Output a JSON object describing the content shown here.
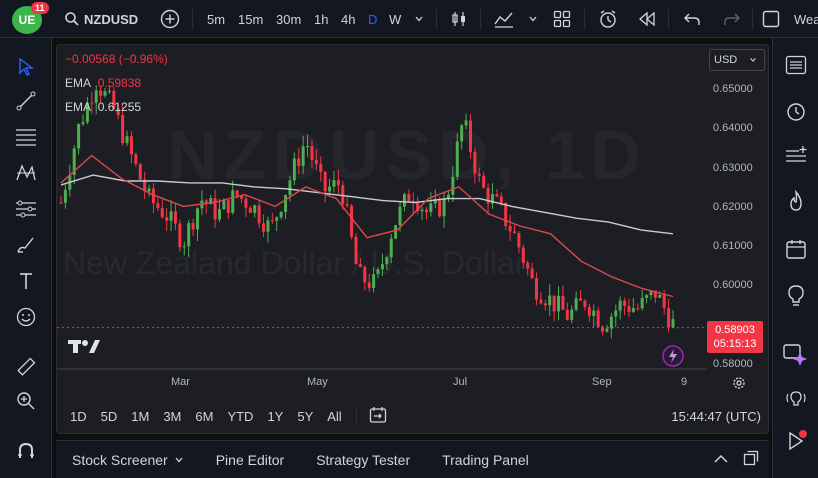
{
  "header": {
    "avatar_text": "UE",
    "notifications": "11",
    "symbol": "NZDUSD",
    "intervals": [
      "5m",
      "15m",
      "30m",
      "1h",
      "4h",
      "D",
      "W"
    ],
    "active_interval": "D",
    "right_text": "Wea"
  },
  "legend": {
    "change": "−0.00568 (−0.96%)",
    "ema1_label": "EMA",
    "ema1_value": "0.59838",
    "ema2_label": "EMA",
    "ema2_value": "0.61255"
  },
  "watermark": {
    "symbol": "NZDUSD, 1D",
    "description": "New Zealand Dollar / U.S. Dollar"
  },
  "price_scale": {
    "currency": "USD",
    "ticks": [
      "0.65000",
      "0.64000",
      "0.63000",
      "0.62000",
      "0.61000",
      "0.60000",
      "0.58000"
    ],
    "current_price": "0.58903",
    "countdown": "05:15:13"
  },
  "time_scale": {
    "ticks": [
      "Mar",
      "May",
      "Jul",
      "Sep",
      "9"
    ]
  },
  "range_bar": {
    "ranges": [
      "1D",
      "5D",
      "1M",
      "3M",
      "6M",
      "YTD",
      "1Y",
      "5Y",
      "All"
    ],
    "clock": "15:44:47 (UTC)"
  },
  "panels": {
    "tabs": [
      "Stock Screener",
      "Pine Editor",
      "Strategy Tester",
      "Trading Panel"
    ]
  },
  "colors": {
    "up": "#26a69a",
    "up_candle": "#4caf50",
    "down": "#f23645",
    "ema_fast": "#e0474c",
    "ema_slow": "#c9cbd1"
  },
  "chart_data": {
    "type": "candlestick",
    "ema_fast": [
      0.626,
      0.633,
      0.627,
      0.623,
      0.62,
      0.621,
      0.623,
      0.62,
      0.625,
      0.622,
      0.612,
      0.614,
      0.622,
      0.625,
      0.618,
      0.615,
      0.613,
      0.606,
      0.602,
      0.599,
      0.597
    ],
    "ema_slow": [
      0.6255,
      0.628,
      0.6265,
      0.6265,
      0.626,
      0.626,
      0.625,
      0.6245,
      0.6235,
      0.6225,
      0.6215,
      0.621,
      0.622,
      0.622,
      0.62,
      0.6185,
      0.617,
      0.616,
      0.614,
      0.613
    ],
    "ylim": [
      0.58,
      0.65
    ]
  }
}
